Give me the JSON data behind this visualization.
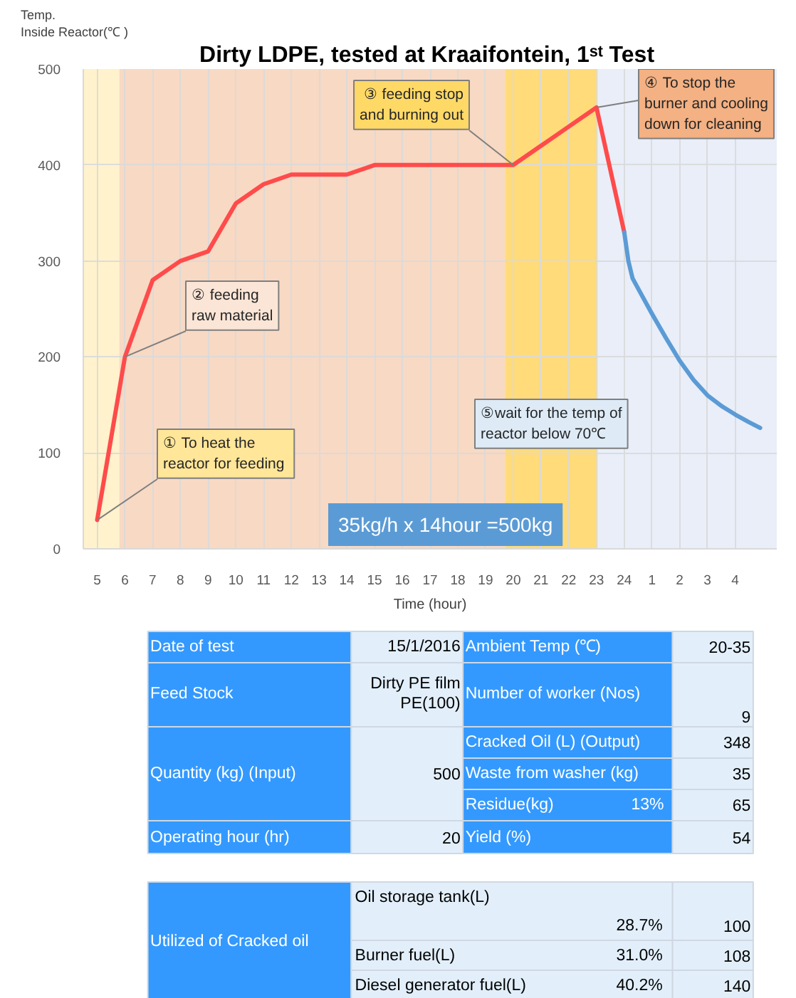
{
  "chart_data": [
    {
      "type": "line",
      "title": "Dirty LDPE, tested at Kraaifontein,  1ˢᵗ Test",
      "xlabel": "Time (hour)",
      "ylabel": "Temp.\nInside Reactor(℃ )",
      "xlim": [
        "2016-01-15T04:30",
        "2016-01-16T05:30"
      ],
      "xticks": [
        {
          "value": "2016-01-15T05:00",
          "label": "5"
        },
        {
          "value": "2016-01-15T06:00",
          "label": "6"
        },
        {
          "value": "2016-01-15T07:00",
          "label": "7"
        },
        {
          "value": "2016-01-15T08:00",
          "label": "8"
        },
        {
          "value": "2016-01-15T09:00",
          "label": "9"
        },
        {
          "value": "2016-01-15T10:00",
          "label": "10"
        },
        {
          "value": "2016-01-15T11:00",
          "label": "11"
        },
        {
          "value": "2016-01-15T12:00",
          "label": "12"
        },
        {
          "value": "2016-01-15T13:00",
          "label": "13"
        },
        {
          "value": "2016-01-15T14:00",
          "label": "14"
        },
        {
          "value": "2016-01-15T15:00",
          "label": "15"
        },
        {
          "value": "2016-01-15T16:00",
          "label": "16"
        },
        {
          "value": "2016-01-15T17:00",
          "label": "17"
        },
        {
          "value": "2016-01-15T18:00",
          "label": "18"
        },
        {
          "value": "2016-01-15T19:00",
          "label": "19"
        },
        {
          "value": "2016-01-15T20:00",
          "label": "20"
        },
        {
          "value": "2016-01-15T21:00",
          "label": "21"
        },
        {
          "value": "2016-01-15T22:00",
          "label": "22"
        },
        {
          "value": "2016-01-15T23:00",
          "label": "23"
        },
        {
          "value": "2016-01-16T00:00",
          "label": "24"
        },
        {
          "value": "2016-01-16T01:00",
          "label": "1"
        },
        {
          "value": "2016-01-16T02:00",
          "label": "2"
        },
        {
          "value": "2016-01-16T03:00",
          "label": "3"
        },
        {
          "value": "2016-01-16T04:00",
          "label": "4"
        }
      ],
      "ylim": [
        0,
        500
      ],
      "yticks": [
        0,
        100,
        200,
        300,
        400,
        500
      ],
      "grid": true,
      "bands": [
        {
          "axis": "x",
          "from": "2016-01-15T04:30",
          "to": "2016-01-15T05:48",
          "color": "#fff2cc"
        },
        {
          "axis": "x",
          "from": "2016-01-15T05:48",
          "to": "2016-01-15T19:42",
          "color": "#f8d9c4"
        },
        {
          "axis": "x",
          "from": "2016-01-15T19:42",
          "to": "2016-01-15T23:03",
          "color": "#ffdb7a"
        },
        {
          "axis": "x",
          "from": "2016-01-15T23:03",
          "to": "2016-01-16T05:30",
          "color": "#e9eef8"
        }
      ],
      "series": [
        {
          "color": "#ff4b4b",
          "x": [
            "2016-01-15T05:00",
            "2016-01-15T06:00",
            "2016-01-15T07:00",
            "2016-01-15T08:00",
            "2016-01-15T09:00",
            "2016-01-15T10:00",
            "2016-01-15T11:00",
            "2016-01-15T12:00",
            "2016-01-15T13:00",
            "2016-01-15T14:00",
            "2016-01-15T15:00",
            "2016-01-15T16:00",
            "2016-01-15T17:00",
            "2016-01-15T18:00",
            "2016-01-15T19:00",
            "2016-01-15T20:00",
            "2016-01-15T21:00",
            "2016-01-15T22:00",
            "2016-01-15T23:00",
            "2016-01-16T00:00"
          ],
          "values": [
            30,
            200,
            280,
            300,
            310,
            360,
            380,
            390,
            390,
            390,
            400,
            400,
            400,
            400,
            400,
            400,
            420,
            440,
            460,
            330
          ]
        },
        {
          "color": "#5b9bd5",
          "x": [
            "2016-01-16T00:00",
            "2016-01-16T00:09",
            "2016-01-16T00:18",
            "2016-01-16T00:36",
            "2016-01-16T01:00",
            "2016-01-16T01:30",
            "2016-01-16T02:00",
            "2016-01-16T02:30",
            "2016-01-16T03:00",
            "2016-01-16T03:30",
            "2016-01-16T04:00",
            "2016-01-16T04:30",
            "2016-01-16T04:54"
          ],
          "values": [
            330,
            300,
            282,
            266,
            245,
            220,
            196,
            176,
            160,
            149,
            140,
            132,
            126
          ]
        }
      ],
      "annotations": [
        {
          "text": "① To heat the\nreactor  for feeding",
          "x": "2016-01-15T05:00",
          "y": 30
        },
        {
          "text": "② feeding\nraw material",
          "x": "2016-01-15T06:00",
          "y": 200
        },
        {
          "text": "③ feeding stop\nand burning out",
          "x": "2016-01-15T20:00",
          "y": 400
        },
        {
          "text": "④ To stop the\nburner and cooling\ndown for cleaning",
          "x": "2016-01-15T23:00",
          "y": 460
        },
        "⑤wait for the temp of\nreactor below 70℃",
        "35kg/h x 14hour =500kg"
      ]
    },
    {
      "type": "other",
      "annotations": [
        "Date of test",
        "15/1/2016",
        "Ambient Temp (℃)",
        "20-35",
        "Feed Stock",
        "Dirty PE film\nPE(100)",
        "Number of  worker (Nos)",
        "9",
        "Cracked Oil (L) (Output)",
        "348",
        "Quantity (kg) (Input)",
        "500",
        "Waste from washer (kg)",
        "35",
        "Residue(kg)",
        "13%",
        "65",
        "Operating hour (hr)",
        "20",
        "Yield (%)",
        "54"
      ]
    },
    {
      "type": "other",
      "annotations": [
        "Utilized of Cracked oil",
        "Oil storage tank(L)",
        "28.7%",
        "100",
        "Burner fuel(L)",
        "31.0%",
        "108",
        "Diesel generator fuel(L)",
        "40.2%",
        "140"
      ]
    }
  ]
}
